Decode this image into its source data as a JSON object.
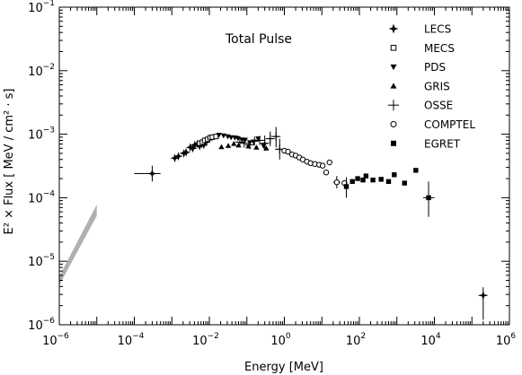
{
  "chart_data": {
    "type": "scatter",
    "title": "Total Pulse",
    "xlabel": "Energy [MeV]",
    "ylabel": "E² × Flux [ MeV / cm² · s]",
    "x_scale": "log",
    "y_scale": "log",
    "xlim": [
      1e-06,
      1000000.0
    ],
    "ylim": [
      1e-06,
      0.1
    ],
    "x_ticks": [
      {
        "base": "10",
        "exp": "−6",
        "value": 1e-06
      },
      {
        "base": "10",
        "exp": "−4",
        "value": 0.0001
      },
      {
        "base": "10",
        "exp": "−2",
        "value": 0.01
      },
      {
        "base": "10",
        "exp": "0",
        "value": 1
      },
      {
        "base": "10",
        "exp": "2",
        "value": 100
      },
      {
        "base": "10",
        "exp": "4",
        "value": 10000.0
      },
      {
        "base": "10",
        "exp": "6",
        "value": 1000000.0
      }
    ],
    "y_ticks": [
      {
        "base": "10",
        "exp": "−6",
        "value": 1e-06
      },
      {
        "base": "10",
        "exp": "−5",
        "value": 1e-05
      },
      {
        "base": "10",
        "exp": "−4",
        "value": 0.0001
      },
      {
        "base": "10",
        "exp": "−3",
        "value": 0.001
      },
      {
        "base": "10",
        "exp": "−2",
        "value": 0.01
      },
      {
        "base": "10",
        "exp": "−1",
        "value": 0.1
      }
    ],
    "band": {
      "x": [
        1e-06,
        1e-05
      ],
      "y_low": [
        4.2e-06,
        5.2e-05
      ],
      "y_high": [
        5.8e-06,
        7.8e-05
      ],
      "color": "#b0b0b0"
    },
    "series": [
      {
        "name": "LECS",
        "marker": "star4",
        "points": [
          {
            "x": 0.0003,
            "y": 0.00024,
            "xerr": [
              0.0001,
              0.0005
            ],
            "yerr": [
              0.00018,
              0.00032
            ]
          },
          {
            "x": 0.0012,
            "y": 0.00042
          },
          {
            "x": 0.0015,
            "y": 0.00045
          },
          {
            "x": 0.0021,
            "y": 0.0005
          },
          {
            "x": 0.0024,
            "y": 0.00052
          },
          {
            "x": 0.0031,
            "y": 0.00062
          },
          {
            "x": 0.0036,
            "y": 0.0006
          },
          {
            "x": 0.0041,
            "y": 0.00068
          },
          {
            "x": 0.0048,
            "y": 0.0007
          },
          {
            "x": 0.0055,
            "y": 0.00065
          },
          {
            "x": 0.0062,
            "y": 0.0007
          },
          {
            "x": 0.0071,
            "y": 0.00068
          },
          {
            "x": 0.0082,
            "y": 0.00075
          }
        ]
      },
      {
        "name": "MECS",
        "marker": "square-open",
        "points": [
          {
            "x": 0.0055,
            "y": 0.00072
          },
          {
            "x": 0.0065,
            "y": 0.00075
          },
          {
            "x": 0.0075,
            "y": 0.0008
          },
          {
            "x": 0.009,
            "y": 0.00083
          },
          {
            "x": 0.0105,
            "y": 0.00088
          },
          {
            "x": 0.012,
            "y": 0.0009
          },
          {
            "x": 0.015,
            "y": 0.00092
          }
        ]
      },
      {
        "name": "PDS",
        "marker": "triangle-down",
        "points": [
          {
            "x": 0.018,
            "y": 0.00097
          },
          {
            "x": 0.024,
            "y": 0.00095
          },
          {
            "x": 0.031,
            "y": 0.00092
          },
          {
            "x": 0.038,
            "y": 0.00089
          },
          {
            "x": 0.048,
            "y": 0.00088
          },
          {
            "x": 0.058,
            "y": 0.00086
          },
          {
            "x": 0.075,
            "y": 0.00082
          },
          {
            "x": 0.09,
            "y": 0.00081
          },
          {
            "x": 0.12,
            "y": 0.00074
          },
          {
            "x": 0.15,
            "y": 0.00076
          },
          {
            "x": 0.2,
            "y": 0.00085
          },
          {
            "x": 0.28,
            "y": 0.00065
          }
        ]
      },
      {
        "name": "GRIS",
        "marker": "triangle-up",
        "points": [
          {
            "x": 0.021,
            "y": 0.00063
          },
          {
            "x": 0.032,
            "y": 0.00066
          },
          {
            "x": 0.045,
            "y": 0.00071
          },
          {
            "x": 0.06,
            "y": 0.00067
          },
          {
            "x": 0.11,
            "y": 0.00065
          },
          {
            "x": 0.18,
            "y": 0.00062
          },
          {
            "x": 0.33,
            "y": 0.0006
          }
        ]
      },
      {
        "name": "OSSE",
        "marker": "cross",
        "points": [
          {
            "x": 0.065,
            "y": 0.00075,
            "xerr": [
              0.055,
              0.075
            ]
          },
          {
            "x": 0.085,
            "y": 0.00072,
            "xerr": [
              0.075,
              0.095
            ]
          },
          {
            "x": 0.12,
            "y": 0.00068,
            "xerr": [
              0.1,
              0.14
            ]
          },
          {
            "x": 0.16,
            "y": 0.00078,
            "xerr": [
              0.13,
              0.19
            ]
          },
          {
            "x": 0.22,
            "y": 0.0008,
            "xerr": [
              0.18,
              0.27
            ]
          },
          {
            "x": 0.3,
            "y": 0.00072,
            "xerr": [
              0.25,
              0.36
            ],
            "yerr": [
              0.00055,
              0.00095
            ]
          },
          {
            "x": 0.42,
            "y": 0.00085,
            "xerr": [
              0.35,
              0.5
            ],
            "yerr": [
              0.00065,
              0.0011
            ]
          },
          {
            "x": 0.6,
            "y": 0.00092,
            "xerr": [
              0.5,
              0.72
            ],
            "yerr": [
              0.00062,
              0.0013
            ]
          },
          {
            "x": 0.75,
            "y": 0.00058,
            "xerr": [
              0.6,
              0.9
            ],
            "yerr": [
              0.0004,
              0.00085
            ]
          }
        ]
      },
      {
        "name": "COMPTEL",
        "marker": "circle-open",
        "points": [
          {
            "x": 1.0,
            "y": 0.00055
          },
          {
            "x": 1.25,
            "y": 0.00053
          },
          {
            "x": 1.6,
            "y": 0.00048
          },
          {
            "x": 2.0,
            "y": 0.00046
          },
          {
            "x": 2.5,
            "y": 0.00043
          },
          {
            "x": 3.1,
            "y": 0.0004
          },
          {
            "x": 4.0,
            "y": 0.00037
          },
          {
            "x": 5.0,
            "y": 0.00035
          },
          {
            "x": 6.5,
            "y": 0.00034
          },
          {
            "x": 8.5,
            "y": 0.00033
          },
          {
            "x": 10.5,
            "y": 0.00032
          },
          {
            "x": 16,
            "y": 0.00036
          },
          {
            "x": 13,
            "y": 0.00025
          },
          {
            "x": 25,
            "y": 0.000175,
            "xerr": [
              20,
              31
            ],
            "yerr": [
              0.00014,
              0.00022
            ]
          },
          {
            "x": 40,
            "y": 0.00017
          }
        ]
      },
      {
        "name": "EGRET",
        "marker": "square-filled",
        "points": [
          {
            "x": 45,
            "y": 0.00015,
            "yerr": [
              0.0001,
              0.00021
            ]
          },
          {
            "x": 65,
            "y": 0.00018
          },
          {
            "x": 90,
            "y": 0.0002
          },
          {
            "x": 125,
            "y": 0.00019
          },
          {
            "x": 150,
            "y": 0.00022
          },
          {
            "x": 230,
            "y": 0.00019
          },
          {
            "x": 380,
            "y": 0.000195
          },
          {
            "x": 600,
            "y": 0.00018
          },
          {
            "x": 850,
            "y": 0.00023
          },
          {
            "x": 1600,
            "y": 0.00017
          },
          {
            "x": 3200,
            "y": 0.00027
          },
          {
            "x": 7000,
            "y": 0.0001,
            "xerr": [
              5000,
              10000
            ],
            "yerr": [
              5e-05,
              0.00018
            ]
          }
        ]
      }
    ],
    "extra_points": [
      {
        "x": 200000,
        "y": 2.9e-06,
        "marker": "star4",
        "xerr": [
          150000,
          260000
        ],
        "yerr": [
          1.2e-06,
          3.9e-06
        ]
      }
    ],
    "grid": false,
    "legend_position": "top-right"
  }
}
